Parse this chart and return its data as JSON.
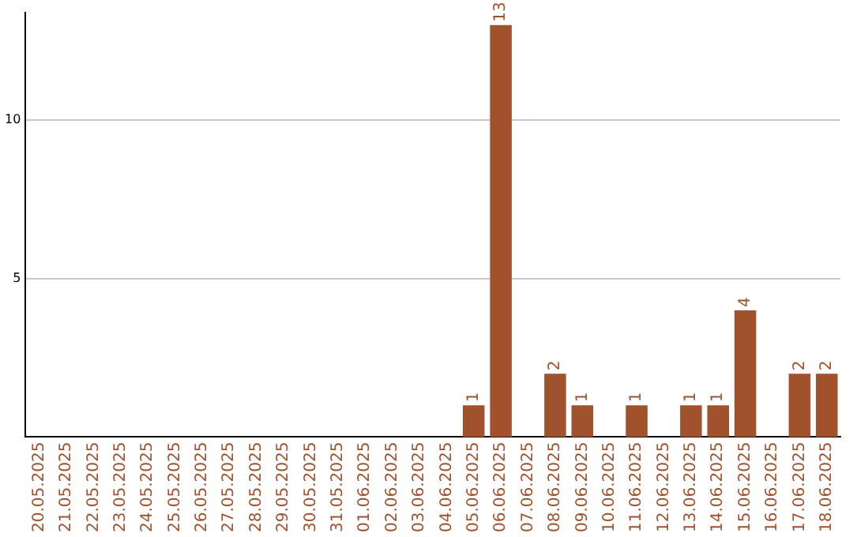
{
  "chart_data": {
    "type": "bar",
    "categories": [
      "20.05.2025",
      "21.05.2025",
      "22.05.2025",
      "23.05.2025",
      "24.05.2025",
      "25.05.2025",
      "26.05.2025",
      "27.05.2025",
      "28.05.2025",
      "29.05.2025",
      "30.05.2025",
      "31.05.2025",
      "01.06.2025",
      "02.06.2025",
      "03.06.2025",
      "04.06.2025",
      "05.06.2025",
      "06.06.2025",
      "07.06.2025",
      "08.06.2025",
      "09.06.2025",
      "10.06.2025",
      "11.06.2025",
      "12.06.2025",
      "13.06.2025",
      "14.06.2025",
      "15.06.2025",
      "16.06.2025",
      "17.06.2025",
      "18.06.2025"
    ],
    "values": [
      0,
      0,
      0,
      0,
      0,
      0,
      0,
      0,
      0,
      0,
      0,
      0,
      0,
      0,
      0,
      0,
      1,
      13,
      0,
      2,
      1,
      0,
      1,
      0,
      1,
      1,
      4,
      0,
      2,
      2
    ],
    "value_labels": [
      null,
      null,
      null,
      null,
      null,
      null,
      null,
      null,
      null,
      null,
      null,
      null,
      null,
      null,
      null,
      null,
      "1",
      "13",
      null,
      "2",
      "1",
      null,
      "1",
      null,
      "1",
      "1",
      "4",
      null,
      "2",
      "2"
    ],
    "color": "#a0522d",
    "ylim": [
      0,
      13.4
    ],
    "yticks": [
      5,
      10
    ],
    "grid": "y",
    "legend": false
  }
}
